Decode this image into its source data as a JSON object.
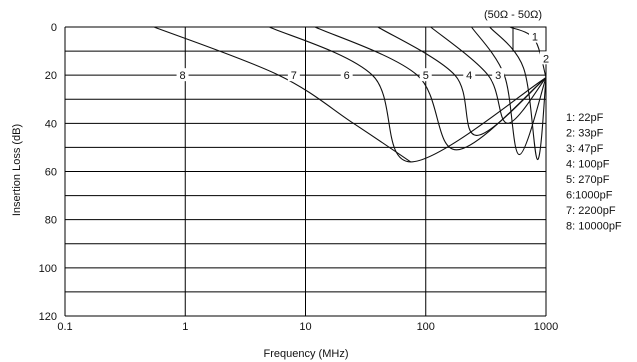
{
  "chart_data": {
    "type": "line",
    "xlabel": "Frequency (MHz)",
    "ylabel": "Insertion Loss (dB)",
    "x_scale": "log",
    "xlim": [
      0.1,
      1000
    ],
    "ylim": [
      0,
      120
    ],
    "y_inverted": true,
    "grid": true,
    "x_ticks": [
      0.1,
      1,
      10,
      100,
      1000
    ],
    "x_tick_labels": [
      "0.1",
      "1",
      "10",
      "100",
      "1000"
    ],
    "y_ticks": [
      0,
      20,
      40,
      60,
      80,
      100,
      120
    ],
    "y_tick_labels": [
      "0",
      "20",
      "40",
      "60",
      "80",
      "100",
      "120"
    ],
    "annotation": "(50Ω - 50Ω)",
    "legend_position": "right",
    "legend": [
      "1: 22pF",
      "2: 33pF",
      "3: 47pF",
      "4: 100pF",
      "5: 270pF",
      "6:1000pF",
      "7: 2200pF",
      "8: 10000pF"
    ],
    "series": [
      {
        "label": "1",
        "x": [
          500,
          800,
          1000
        ],
        "y": [
          0,
          5,
          21
        ]
      },
      {
        "label": "2",
        "x": [
          340,
          650,
          850,
          1000
        ],
        "y": [
          0,
          17,
          55,
          21
        ]
      },
      {
        "label": "3",
        "x": [
          240,
          450,
          600,
          1000
        ],
        "y": [
          0,
          20,
          53,
          21
        ]
      },
      {
        "label": "4",
        "x": [
          110,
          330,
          480,
          1000
        ],
        "y": [
          0,
          20,
          40,
          21
        ]
      },
      {
        "label": "5",
        "x": [
          40,
          175,
          265,
          1000
        ],
        "y": [
          0,
          20,
          45,
          21
        ]
      },
      {
        "label": "6",
        "x": [
          12,
          85,
          180,
          1000
        ],
        "y": [
          0,
          20,
          51,
          21
        ]
      },
      {
        "label": "7",
        "x": [
          5,
          36,
          75,
          1000
        ],
        "y": [
          0,
          20,
          56,
          21
        ]
      },
      {
        "label": "8",
        "x": [
          0.55,
          6,
          25,
          75
        ],
        "y": [
          0,
          20,
          40,
          56
        ]
      }
    ],
    "curve_labels": [
      {
        "text": "1",
        "x": 810,
        "y": 4
      },
      {
        "text": "2",
        "x": 1000,
        "y": 13
      },
      {
        "text": "3",
        "x": 400,
        "y": 20
      },
      {
        "text": "4",
        "x": 230,
        "y": 20
      },
      {
        "text": "5",
        "x": 100,
        "y": 20
      },
      {
        "text": "6",
        "x": 22,
        "y": 20
      },
      {
        "text": "7",
        "x": 8,
        "y": 20
      },
      {
        "text": "8",
        "x": 0.95,
        "y": 20
      }
    ]
  }
}
